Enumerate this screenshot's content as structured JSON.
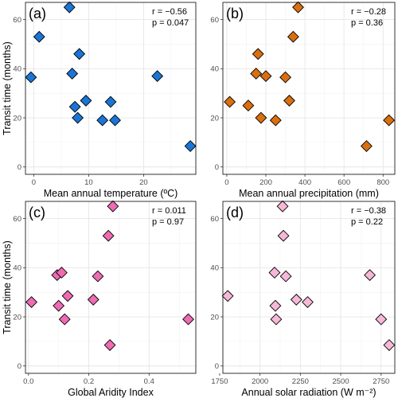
{
  "chart_data": [
    {
      "id": "a",
      "type": "scatter",
      "panel_label": "(a)",
      "stats": [
        "r = −0.56",
        "p = 0.047"
      ],
      "xlabel": "Mean annual temperature (ºC)",
      "ylabel": "Transit time (months)",
      "xlim": [
        -1.5,
        29.5
      ],
      "ylim": [
        -3,
        67
      ],
      "xticks": [
        0,
        10,
        20
      ],
      "xtick_labels": [
        "0",
        "10",
        "20"
      ],
      "yticks": [
        0,
        20,
        40,
        60
      ],
      "ytick_labels": [
        "0",
        "20",
        "40",
        "60"
      ],
      "grid": true,
      "color": "#1a75d6",
      "points": [
        {
          "x": -0.5,
          "y": 36.5
        },
        {
          "x": 1.0,
          "y": 53
        },
        {
          "x": 6.5,
          "y": 65
        },
        {
          "x": 7.0,
          "y": 38
        },
        {
          "x": 7.5,
          "y": 24.5
        },
        {
          "x": 8.0,
          "y": 20
        },
        {
          "x": 8.3,
          "y": 46
        },
        {
          "x": 9.5,
          "y": 27
        },
        {
          "x": 12.5,
          "y": 19
        },
        {
          "x": 14.0,
          "y": 26.5
        },
        {
          "x": 14.8,
          "y": 19
        },
        {
          "x": 22.5,
          "y": 37
        },
        {
          "x": 28.5,
          "y": 8.5
        }
      ]
    },
    {
      "id": "b",
      "type": "scatter",
      "panel_label": "(b)",
      "stats": [
        "r = −0.28",
        "p = 0.36"
      ],
      "xlabel": "Mean annual precipitation (mm)",
      "ylabel": "",
      "xlim": [
        -20,
        860
      ],
      "ylim": [
        -3,
        67
      ],
      "xticks": [
        0,
        200,
        400,
        600,
        800
      ],
      "xtick_labels": [
        "0",
        "200",
        "400",
        "600",
        "800"
      ],
      "yticks": [
        0,
        20,
        40,
        60
      ],
      "ytick_labels": [
        "0",
        "20",
        "40",
        "60"
      ],
      "grid": true,
      "color": "#db6f0f",
      "points": [
        {
          "x": 15,
          "y": 26.5
        },
        {
          "x": 110,
          "y": 25
        },
        {
          "x": 150,
          "y": 38
        },
        {
          "x": 160,
          "y": 46
        },
        {
          "x": 175,
          "y": 20
        },
        {
          "x": 200,
          "y": 37
        },
        {
          "x": 250,
          "y": 19
        },
        {
          "x": 300,
          "y": 36.5
        },
        {
          "x": 320,
          "y": 27
        },
        {
          "x": 340,
          "y": 53
        },
        {
          "x": 365,
          "y": 65
        },
        {
          "x": 715,
          "y": 8.5
        },
        {
          "x": 830,
          "y": 19
        }
      ]
    },
    {
      "id": "c",
      "type": "scatter",
      "panel_label": "(c)",
      "stats": [
        "r = 0.011",
        "p = 0.97"
      ],
      "xlabel": "Global Aridity Index",
      "ylabel": "Transit time (months)",
      "xlim": [
        -0.01,
        0.555
      ],
      "ylim": [
        -3,
        67
      ],
      "xticks": [
        0.0,
        0.2,
        0.4
      ],
      "xtick_labels": [
        "0.0",
        "0.2",
        "0.4"
      ],
      "yticks": [
        0,
        20,
        40,
        60
      ],
      "ytick_labels": [
        "0",
        "20",
        "40",
        "60"
      ],
      "grid": true,
      "color": "#ef6bb4",
      "points": [
        {
          "x": 0.01,
          "y": 26
        },
        {
          "x": 0.095,
          "y": 37
        },
        {
          "x": 0.1,
          "y": 24.5
        },
        {
          "x": 0.11,
          "y": 38
        },
        {
          "x": 0.12,
          "y": 19
        },
        {
          "x": 0.13,
          "y": 28.5
        },
        {
          "x": 0.215,
          "y": 27
        },
        {
          "x": 0.23,
          "y": 36.5
        },
        {
          "x": 0.265,
          "y": 53
        },
        {
          "x": 0.27,
          "y": 8.5
        },
        {
          "x": 0.28,
          "y": 65
        },
        {
          "x": 0.53,
          "y": 19
        }
      ]
    },
    {
      "id": "d",
      "type": "scatter",
      "panel_label": "(d)",
      "stats": [
        "r = −0.38",
        "p = 0.22"
      ],
      "xlabel": "Annual solar radiation (W m⁻²)",
      "ylabel": "",
      "xlim": [
        1770,
        2835
      ],
      "ylim": [
        -3,
        67
      ],
      "xticks": [
        1750,
        2000,
        2250,
        2500,
        2750
      ],
      "xtick_labels": [
        "1750",
        "2000",
        "2250",
        "2500",
        "2750"
      ],
      "yticks": [
        0,
        20,
        40,
        60
      ],
      "ytick_labels": [
        "0",
        "20",
        "40",
        "60"
      ],
      "grid": true,
      "color": "#f7b8d8",
      "points": [
        {
          "x": 1800,
          "y": 28.5
        },
        {
          "x": 2090,
          "y": 38
        },
        {
          "x": 2095,
          "y": 24.5
        },
        {
          "x": 2100,
          "y": 19
        },
        {
          "x": 2140,
          "y": 65
        },
        {
          "x": 2145,
          "y": 53
        },
        {
          "x": 2160,
          "y": 36.5
        },
        {
          "x": 2225,
          "y": 27
        },
        {
          "x": 2295,
          "y": 26
        },
        {
          "x": 2680,
          "y": 37
        },
        {
          "x": 2750,
          "y": 19
        },
        {
          "x": 2800,
          "y": 8.5
        }
      ]
    }
  ]
}
